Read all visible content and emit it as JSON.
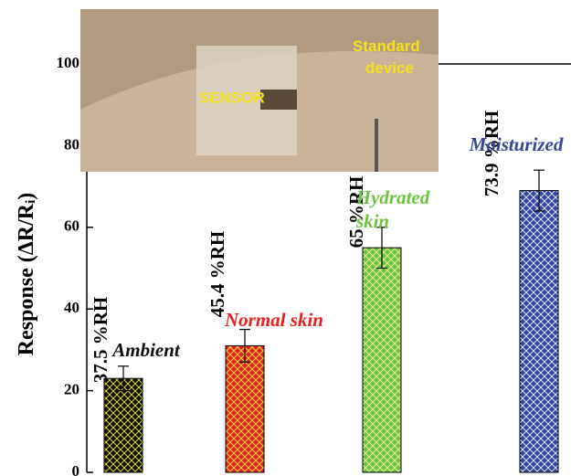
{
  "chart_data": {
    "type": "bar",
    "ylabel": {
      "main": "Response (ΔR/R",
      "sub": "i",
      "end": ")"
    },
    "categories": [
      "Ambient",
      "Normal skin",
      "Hydrated skin",
      "Moisturized"
    ],
    "humidity_labels": [
      "37.5 %RH",
      "45.4 %RH",
      "65 %RH",
      "73.9 %RH"
    ],
    "series": [
      {
        "values": [
          23,
          31,
          55,
          69
        ],
        "errors": [
          3,
          4,
          5,
          5
        ],
        "colors": [
          "#111111",
          "#e8201f",
          "#6cc43c",
          "#34459c"
        ],
        "hatch_colors": [
          "#d8d830",
          "#f2e040",
          "#e8f0a0",
          "#d8dcf0"
        ],
        "label_colors": [
          "#111111",
          "#e8201f",
          "#6cc43c",
          "#34459c"
        ]
      }
    ],
    "ylim": [
      0,
      100
    ],
    "yticks": [
      0,
      20,
      40,
      60,
      80,
      100
    ],
    "inset": {
      "labels": [
        "SENSOR",
        "Standard device"
      ]
    }
  }
}
